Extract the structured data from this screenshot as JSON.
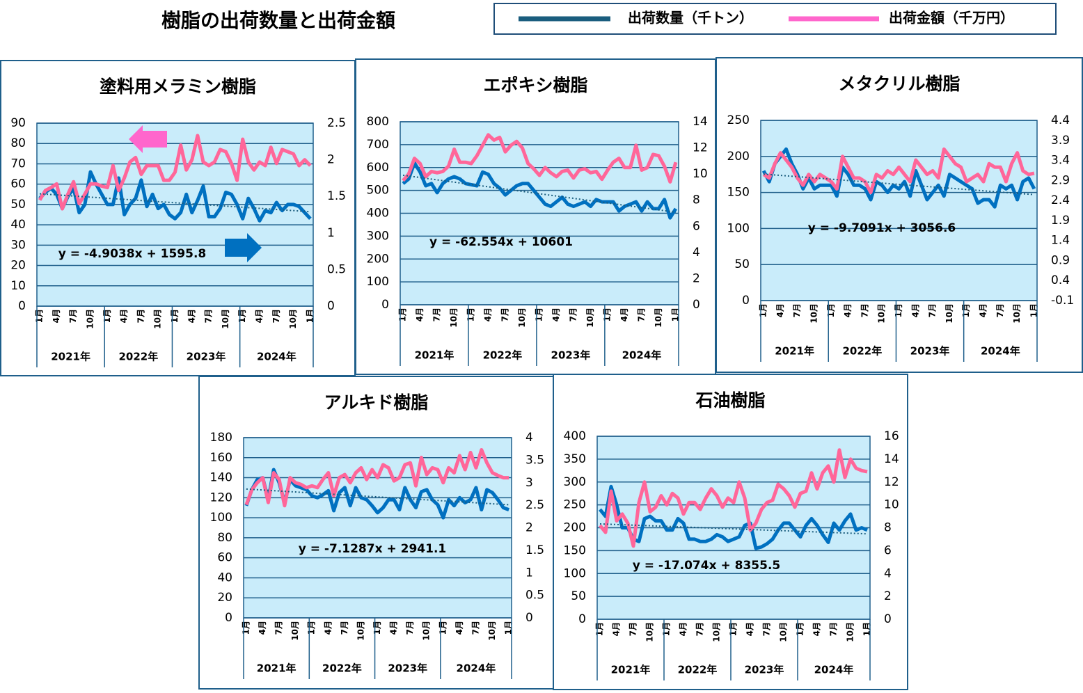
{
  "title": "樹脂の出荷数量と出荷金額",
  "legend": [
    {
      "name": "出荷数量（千トン）",
      "color": "#1a5d7e"
    },
    {
      "name": "出荷金額（千万円）",
      "color": "#ff66cc"
    }
  ],
  "chart_data": [
    {
      "type": "line",
      "title": "塗料用メラミン樹脂",
      "trendline_label": "y = -4.9038x + 1595.8",
      "categories": [
        "1月",
        null,
        null,
        "4月",
        null,
        null,
        "7月",
        null,
        null,
        "10月",
        null,
        null,
        "1月",
        null,
        null,
        "4月",
        null,
        null,
        "7月",
        null,
        null,
        "10月",
        null,
        null,
        "1月",
        null,
        null,
        "4月",
        null,
        null,
        "7月",
        null,
        null,
        "10月",
        null,
        null,
        "1月",
        null,
        null,
        "4月",
        null,
        null,
        "7月",
        null,
        null,
        "10月",
        null,
        null,
        "1月"
      ],
      "years": [
        "2021年",
        "2022年",
        "2023年",
        "2024年"
      ],
      "ylim": [
        0,
        90
      ],
      "yticks": [
        0,
        10,
        20,
        30,
        40,
        50,
        60,
        70,
        80,
        90
      ],
      "y2lim": [
        0,
        2.5
      ],
      "y2ticks": [
        0,
        0.5,
        1,
        1.5,
        2,
        2.5
      ],
      "series": [
        {
          "color": "#0070c0",
          "values": [
            53,
            56,
            58,
            55,
            48,
            54,
            58,
            46,
            50,
            66,
            60,
            55,
            50,
            50,
            63,
            45,
            50,
            53,
            62,
            49,
            55,
            48,
            50,
            45,
            43,
            46,
            55,
            46,
            52,
            59,
            44,
            44,
            48,
            56,
            55,
            50,
            43,
            53,
            48,
            42,
            47,
            46,
            51,
            47,
            50,
            50,
            49,
            46,
            43
          ]
        },
        {
          "color": "#ff6699",
          "axis": "y2",
          "values": [
            1.45,
            1.58,
            1.62,
            1.67,
            1.33,
            1.53,
            1.7,
            1.4,
            1.53,
            1.67,
            1.67,
            1.64,
            1.62,
            1.92,
            1.58,
            1.75,
            1.97,
            2.03,
            1.8,
            1.92,
            1.92,
            1.92,
            1.72,
            1.72,
            1.83,
            2.2,
            1.86,
            2.0,
            2.33,
            1.97,
            1.92,
            1.97,
            2.14,
            2.11,
            1.95,
            1.72,
            2.28,
            1.97,
            1.86,
            1.97,
            1.92,
            2.17,
            1.95,
            2.14,
            2.11,
            2.08,
            1.92,
            2.0,
            1.92
          ]
        }
      ]
    },
    {
      "type": "line",
      "title": "エポキシ樹脂",
      "trendline_label": "y = -62.554x + 10601",
      "categories": [
        "1月",
        null,
        null,
        "4月",
        null,
        null,
        "7月",
        null,
        null,
        "10月",
        null,
        null,
        "1月",
        null,
        null,
        "4月",
        null,
        null,
        "7月",
        null,
        null,
        "10月",
        null,
        null,
        "1月",
        null,
        null,
        "4月",
        null,
        null,
        "7月",
        null,
        null,
        "10月",
        null,
        null,
        "1月",
        null,
        null,
        "4月",
        null,
        null,
        "7月",
        null,
        null,
        "10月",
        null,
        null,
        "1月"
      ],
      "years": [
        "2021年",
        "2022年",
        "2023年",
        "2024年"
      ],
      "ylim": [
        0,
        800
      ],
      "yticks": [
        0,
        100,
        200,
        300,
        400,
        500,
        600,
        700,
        800
      ],
      "y2lim": [
        0,
        14
      ],
      "y2ticks": [
        0,
        2,
        4,
        6,
        8,
        10,
        12,
        14
      ],
      "series": [
        {
          "color": "#0070c0",
          "values": [
            530,
            550,
            620,
            580,
            520,
            530,
            490,
            530,
            550,
            560,
            550,
            530,
            525,
            520,
            580,
            570,
            530,
            510,
            480,
            500,
            520,
            530,
            530,
            500,
            470,
            440,
            430,
            450,
            470,
            440,
            430,
            440,
            450,
            430,
            460,
            450,
            450,
            450,
            410,
            430,
            440,
            450,
            410,
            450,
            420,
            420,
            460,
            380,
            420
          ]
        },
        {
          "color": "#ff6699",
          "axis": "y2",
          "values": [
            9.5,
            10.0,
            11.2,
            10.8,
            9.8,
            10.2,
            10.1,
            10.2,
            10.6,
            11.9,
            10.9,
            10.9,
            10.8,
            11.4,
            12.2,
            13.0,
            12.6,
            12.8,
            11.7,
            12.2,
            12.5,
            12.0,
            10.8,
            10.4,
            9.9,
            10.5,
            10.1,
            9.8,
            10.2,
            10.3,
            9.7,
            10.3,
            10.4,
            10.1,
            10.2,
            9.6,
            10.3,
            10.9,
            11.2,
            10.5,
            10.5,
            12.2,
            10.3,
            10.5,
            11.5,
            11.4,
            10.6,
            9.4,
            10.9
          ]
        }
      ]
    },
    {
      "type": "line",
      "title": "メタクリル樹脂",
      "trendline_label": "y = -9.7091x + 3056.6",
      "categories": [
        "1月",
        null,
        null,
        "4月",
        null,
        null,
        "7月",
        null,
        null,
        "10月",
        null,
        null,
        "1月",
        null,
        null,
        "4月",
        null,
        null,
        "7月",
        null,
        null,
        "10月",
        null,
        null,
        "1月",
        null,
        null,
        "4月",
        null,
        null,
        "7月",
        null,
        null,
        "10月",
        null,
        null,
        "1月",
        null,
        null,
        "4月",
        null,
        null,
        "7月",
        null,
        null,
        "10月",
        null,
        null,
        "1月"
      ],
      "years": [
        "2021年",
        "2022年",
        "2023年",
        "2024年"
      ],
      "ylim": [
        0,
        250
      ],
      "yticks": [
        0,
        50,
        100,
        150,
        200,
        250
      ],
      "y2lim": [
        -0.1,
        4.4
      ],
      "y2ticks": [
        -0.1,
        0.4,
        0.9,
        1.4,
        1.9,
        2.4,
        2.9,
        3.4,
        3.9,
        4.4
      ],
      "series": [
        {
          "color": "#0070c0",
          "values": [
            180,
            165,
            190,
            200,
            210,
            190,
            175,
            155,
            170,
            155,
            160,
            160,
            160,
            145,
            185,
            175,
            160,
            160,
            155,
            140,
            165,
            160,
            150,
            160,
            155,
            165,
            145,
            180,
            160,
            140,
            150,
            160,
            145,
            175,
            170,
            165,
            160,
            155,
            135,
            140,
            140,
            130,
            160,
            155,
            160,
            140,
            165,
            170,
            155
          ]
        },
        {
          "color": "#ff6699",
          "axis": "y2",
          "values": [
            3.05,
            2.96,
            3.32,
            3.59,
            3.41,
            3.23,
            2.96,
            2.78,
            3.05,
            2.87,
            3.05,
            2.96,
            2.87,
            2.69,
            3.5,
            3.23,
            2.96,
            2.96,
            2.87,
            2.6,
            3.05,
            2.96,
            3.14,
            3.05,
            3.23,
            3.05,
            2.87,
            3.41,
            3.23,
            3.05,
            3.14,
            2.96,
            3.68,
            3.5,
            3.32,
            3.23,
            2.87,
            2.96,
            3.05,
            2.87,
            3.32,
            3.23,
            3.23,
            2.87,
            3.32,
            3.59,
            3.14,
            3.05,
            3.08
          ]
        }
      ]
    },
    {
      "type": "line",
      "title": "アルキド樹脂",
      "trendline_label": "y = -7.1287x + 2941.1",
      "categories": [
        "1月",
        null,
        null,
        "4月",
        null,
        null,
        "7月",
        null,
        null,
        "10月",
        null,
        null,
        "1月",
        null,
        null,
        "4月",
        null,
        null,
        "7月",
        null,
        null,
        "10月",
        null,
        null,
        "1月",
        null,
        null,
        "4月",
        null,
        null,
        "7月",
        null,
        null,
        "10月",
        null,
        null,
        "1月",
        null,
        null,
        "4月",
        null,
        null,
        "7月",
        null,
        null,
        "10月",
        null,
        null,
        "1月"
      ],
      "years": [
        "2021年",
        "2022年",
        "2023年",
        "2024年"
      ],
      "ylim": [
        0,
        180
      ],
      "yticks": [
        0,
        20,
        40,
        60,
        80,
        100,
        120,
        140,
        160,
        180
      ],
      "y2lim": [
        0,
        4
      ],
      "y2ticks": [
        0,
        0.5,
        1,
        1.5,
        2,
        2.5,
        3,
        3.5,
        4
      ],
      "series": [
        {
          "color": "#0070c0",
          "values": [
            112,
            128,
            138,
            140,
            118,
            148,
            135,
            115,
            138,
            132,
            130,
            128,
            122,
            120,
            123,
            127,
            107,
            125,
            130,
            112,
            130,
            120,
            118,
            112,
            105,
            110,
            118,
            118,
            108,
            130,
            118,
            110,
            126,
            128,
            118,
            113,
            100,
            118,
            112,
            120,
            115,
            118,
            130,
            108,
            128,
            125,
            118,
            110,
            108
          ]
        },
        {
          "color": "#ff6699",
          "axis": "y2",
          "values": [
            2.51,
            2.84,
            3.0,
            3.11,
            2.56,
            3.22,
            3.07,
            2.49,
            3.11,
            3.0,
            2.96,
            2.89,
            2.93,
            2.89,
            3.07,
            3.22,
            2.71,
            3.11,
            3.18,
            3.0,
            3.22,
            3.33,
            3.07,
            3.29,
            3.11,
            3.4,
            3.33,
            3.04,
            3.11,
            3.4,
            3.44,
            2.93,
            3.56,
            3.18,
            3.33,
            3.29,
            3.0,
            3.33,
            3.22,
            3.6,
            3.29,
            3.67,
            3.33,
            3.73,
            3.44,
            3.22,
            3.16,
            3.11,
            3.11
          ]
        }
      ]
    },
    {
      "type": "line",
      "title": "石油樹脂",
      "trendline_label": "y = -17.074x + 8355.5",
      "categories": [
        "1月",
        null,
        null,
        "4月",
        null,
        null,
        "7月",
        null,
        null,
        "10月",
        null,
        null,
        "1月",
        null,
        null,
        "4月",
        null,
        null,
        "7月",
        null,
        null,
        "10月",
        null,
        null,
        "1月",
        null,
        null,
        "4月",
        null,
        null,
        "7月",
        null,
        null,
        "10月",
        null,
        null,
        "1月",
        null,
        null,
        "4月",
        null,
        null,
        "7月",
        null,
        null,
        "10月",
        null,
        null,
        "1月"
      ],
      "years": [
        "2021年",
        "2022年",
        "2023年",
        "2024年"
      ],
      "ylim": [
        0,
        400
      ],
      "yticks": [
        0,
        50,
        100,
        150,
        200,
        250,
        300,
        350,
        400
      ],
      "y2lim": [
        0,
        16
      ],
      "y2ticks": [
        0,
        2,
        4,
        6,
        8,
        10,
        12,
        14,
        16
      ],
      "series": [
        {
          "color": "#0070c0",
          "values": [
            240,
            225,
            290,
            250,
            200,
            200,
            175,
            170,
            220,
            225,
            215,
            215,
            195,
            195,
            220,
            210,
            175,
            175,
            170,
            170,
            175,
            185,
            180,
            170,
            175,
            180,
            205,
            210,
            155,
            158,
            165,
            175,
            195,
            210,
            210,
            195,
            180,
            205,
            220,
            205,
            185,
            168,
            210,
            195,
            215,
            230,
            195,
            200,
            195
          ]
        },
        {
          "color": "#ff6699",
          "axis": "y2",
          "values": [
            8.2,
            7.6,
            11.2,
            8.6,
            9.2,
            8.4,
            6.4,
            10.2,
            12.0,
            9.4,
            9.8,
            10.8,
            10.0,
            11.0,
            10.6,
            9.2,
            10.2,
            10.2,
            9.6,
            10.6,
            11.4,
            10.8,
            9.8,
            10.6,
            10.2,
            12.0,
            10.6,
            7.8,
            8.4,
            9.6,
            10.2,
            10.4,
            11.8,
            11.4,
            10.8,
            9.8,
            11.0,
            11.2,
            12.8,
            11.4,
            12.8,
            13.4,
            12.0,
            14.8,
            12.4,
            14.0,
            13.2,
            13.0,
            12.9
          ]
        }
      ]
    }
  ]
}
